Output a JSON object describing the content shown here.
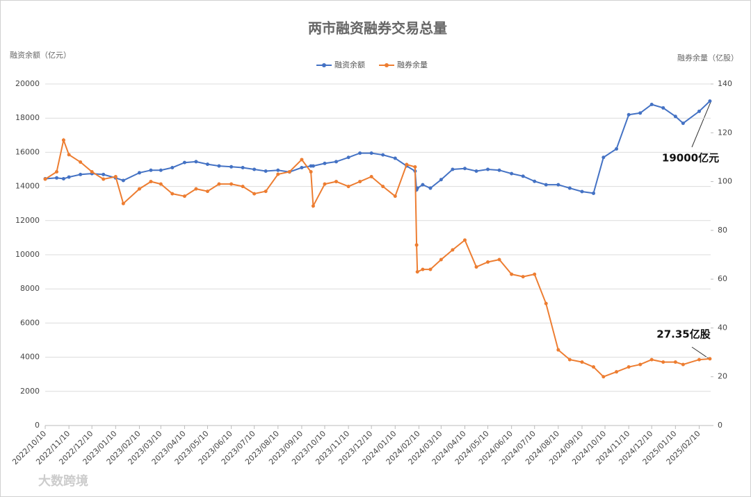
{
  "chart_data": {
    "type": "line",
    "title": "两市融资融券交易总量",
    "y_label": "融资余额（亿元）",
    "y2_label": "融券余量（亿股）",
    "x": [
      "2022/10/10",
      "2022/10/25",
      "2022/11/03",
      "2022/11/10",
      "2022/11/25",
      "2022/12/10",
      "2022/12/25",
      "2023/01/10",
      "2023/01/20",
      "2023/02/10",
      "2023/02/25",
      "2023/03/10",
      "2023/03/25",
      "2023/04/10",
      "2023/04/25",
      "2023/05/10",
      "2023/05/25",
      "2023/06/10",
      "2023/06/25",
      "2023/07/10",
      "2023/07/25",
      "2023/08/10",
      "2023/08/25",
      "2023/09/10",
      "2023/09/22",
      "2023/09/25",
      "2023/10/10",
      "2023/10/25",
      "2023/11/10",
      "2023/11/25",
      "2023/12/10",
      "2023/12/25",
      "2024/01/10",
      "2024/01/25",
      "2024/02/05",
      "2024/02/07",
      "2024/02/08",
      "2024/02/15",
      "2024/02/25",
      "2024/03/10",
      "2024/03/25",
      "2024/04/10",
      "2024/04/25",
      "2024/05/10",
      "2024/05/25",
      "2024/06/10",
      "2024/06/25",
      "2024/07/10",
      "2024/07/25",
      "2024/08/10",
      "2024/08/25",
      "2024/09/10",
      "2024/09/25",
      "2024/10/08",
      "2024/10/25",
      "2024/11/10",
      "2024/11/25",
      "2024/12/10",
      "2024/12/25",
      "2025/01/10",
      "2025/01/20",
      "2025/02/10",
      "2025/02/24"
    ],
    "series": [
      {
        "name": "融资余额",
        "color": "#4472c4",
        "values": [
          14450,
          14500,
          14450,
          14550,
          14700,
          14750,
          14700,
          14500,
          14350,
          14800,
          14950,
          14950,
          15100,
          15400,
          15450,
          15300,
          15200,
          15150,
          15100,
          15000,
          14900,
          14950,
          14850,
          15100,
          15200,
          15200,
          15350,
          15450,
          15700,
          15950,
          15950,
          15850,
          15650,
          15200,
          14900,
          13800,
          13900,
          14100,
          13900,
          14400,
          15000,
          15050,
          14900,
          15000,
          14950,
          14750,
          14600,
          14300,
          14100,
          14100,
          13900,
          13700,
          13600,
          15700,
          16200,
          18200,
          18300,
          18800,
          18600,
          18100,
          17700,
          18400,
          19000
        ]
      },
      {
        "name": "融券余量",
        "color": "#ed7d31",
        "axis": "y2",
        "values": [
          101,
          104,
          117,
          111,
          108,
          104,
          101,
          102,
          91,
          97,
          100,
          99,
          95,
          94,
          97,
          96,
          99,
          99,
          98,
          95,
          96,
          103,
          104,
          109,
          104,
          90,
          99,
          100,
          98,
          100,
          102,
          98,
          94,
          107,
          106,
          74,
          63,
          64,
          64,
          68,
          72,
          76,
          65,
          67,
          68,
          62,
          61,
          62,
          50,
          31,
          27,
          26,
          24,
          20,
          22,
          24,
          25,
          27,
          26,
          26,
          25,
          27,
          27.35
        ]
      }
    ],
    "xlim": [
      "2022/10/10",
      "2025/02/25"
    ],
    "xticks": [
      "2022/10/10",
      "2022/11/10",
      "2022/12/10",
      "2023/01/10",
      "2023/02/10",
      "2023/03/10",
      "2023/04/10",
      "2023/05/10",
      "2023/06/10",
      "2023/07/10",
      "2023/08/10",
      "2023/09/10",
      "2023/10/10",
      "2023/11/10",
      "2023/12/10",
      "2024/01/10",
      "2024/02/10",
      "2024/03/10",
      "2024/04/10",
      "2024/05/10",
      "2024/06/10",
      "2024/07/10",
      "2024/08/10",
      "2024/09/10",
      "2024/10/10",
      "2024/11/10",
      "2024/12/10",
      "2025/01/10",
      "2025/02/10"
    ],
    "ylim": [
      0,
      20000
    ],
    "yticks": [
      0,
      2000,
      4000,
      6000,
      8000,
      10000,
      12000,
      14000,
      16000,
      18000,
      20000
    ],
    "y2lim": [
      0,
      140
    ],
    "y2ticks": [
      0,
      20,
      40,
      60,
      80,
      100,
      120,
      140
    ],
    "grid": true,
    "legend": "top",
    "annotations": [
      "19000亿元",
      "27.35亿股"
    ]
  },
  "watermark": "大数跨境"
}
